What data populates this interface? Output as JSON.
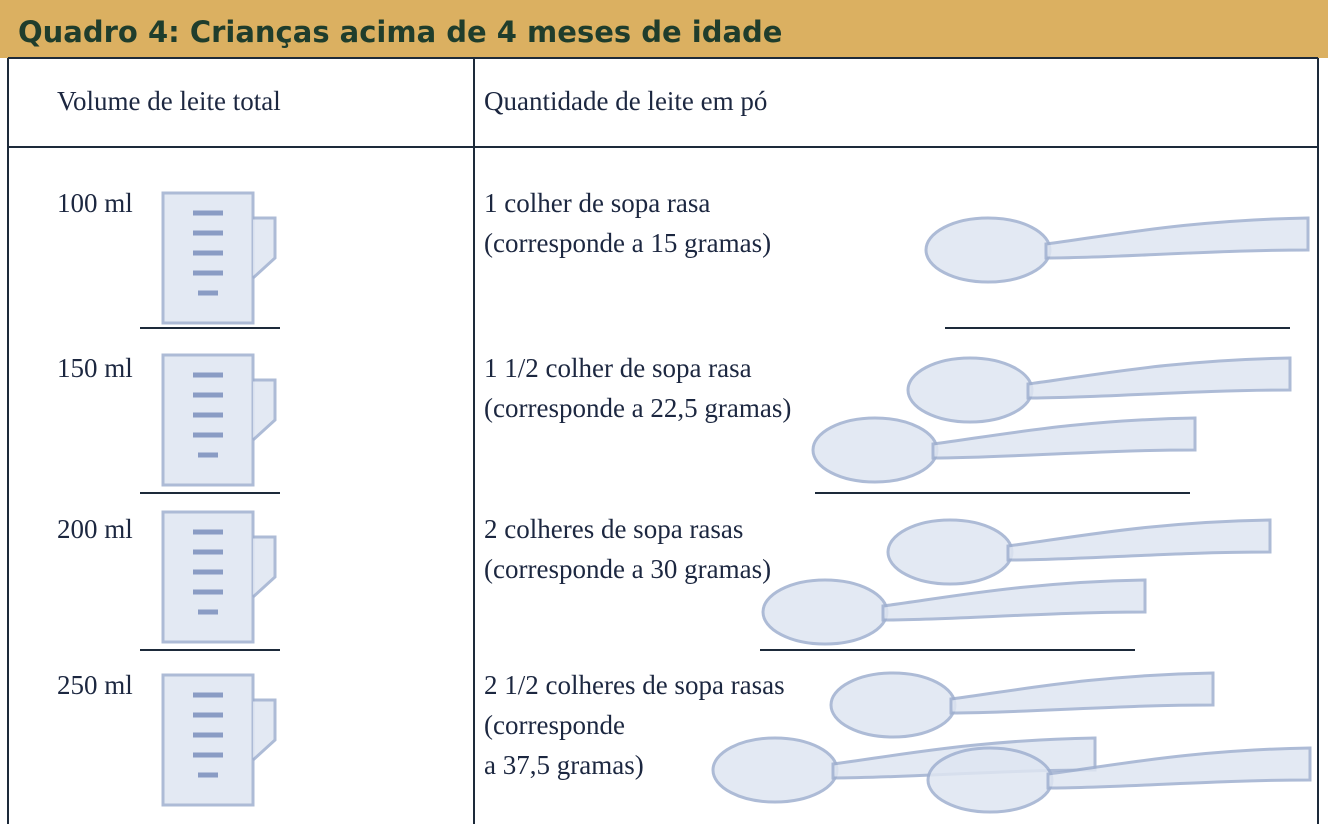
{
  "header": {
    "title": "Quadro 4: Crianças acima de 4 meses de idade"
  },
  "table": {
    "columns": [
      "Volume de leite total",
      "Quantidade de leite em pó"
    ],
    "rows": [
      {
        "volume": "100 ml",
        "quantity": [
          "1 colher de sopa rasa",
          "(corresponde a 15 gramas)"
        ]
      },
      {
        "volume": "150 ml",
        "quantity": [
          "1 1/2 colher de sopa rasa",
          "(corresponde a 22,5 gramas)"
        ]
      },
      {
        "volume": "200 ml",
        "quantity": [
          "2 colheres de sopa rasas",
          "(corresponde a 30 gramas)"
        ]
      },
      {
        "volume": "250 ml",
        "quantity": [
          "2 1/2 colheres de sopa rasas",
          "(corresponde",
          "a 37,5 gramas)"
        ]
      }
    ]
  }
}
